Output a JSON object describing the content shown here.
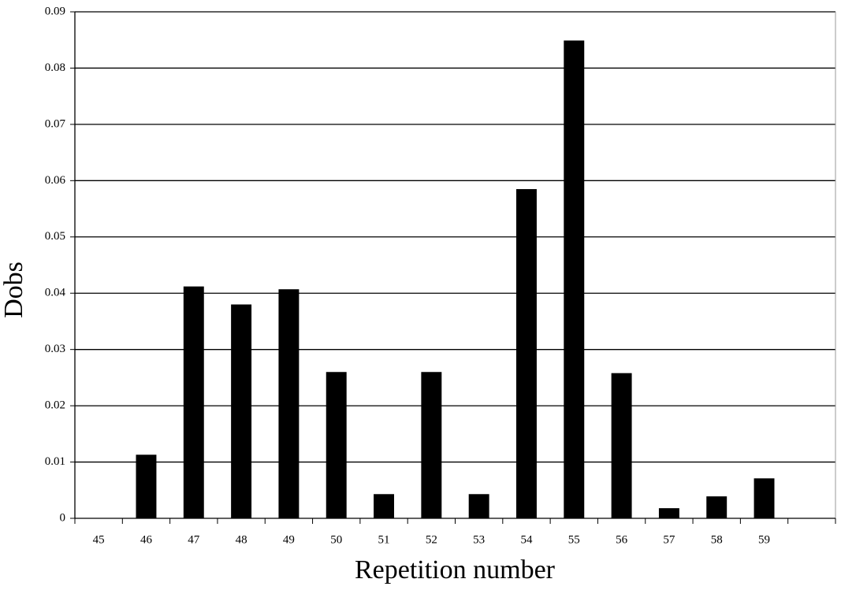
{
  "chart_data": {
    "type": "bar",
    "x_label": "Repetition number",
    "y_label": "Dobs",
    "categories": [
      "45",
      "46",
      "47",
      "48",
      "49",
      "50",
      "51",
      "52",
      "53",
      "54",
      "55",
      "56",
      "57",
      "58",
      "59",
      null
    ],
    "values": [
      0,
      0.0113,
      0.0412,
      0.038,
      0.0407,
      0.026,
      0.0043,
      0.026,
      0.0043,
      0.0585,
      0.0849,
      0.0258,
      0.0018,
      0.0039,
      0.0071,
      null
    ],
    "color": "#000000",
    "ylim": [
      0,
      0.09
    ],
    "yticks": [
      0,
      0.01,
      0.02,
      0.03,
      0.04,
      0.05,
      0.06,
      0.07,
      0.08,
      0.09
    ],
    "grid": true
  }
}
